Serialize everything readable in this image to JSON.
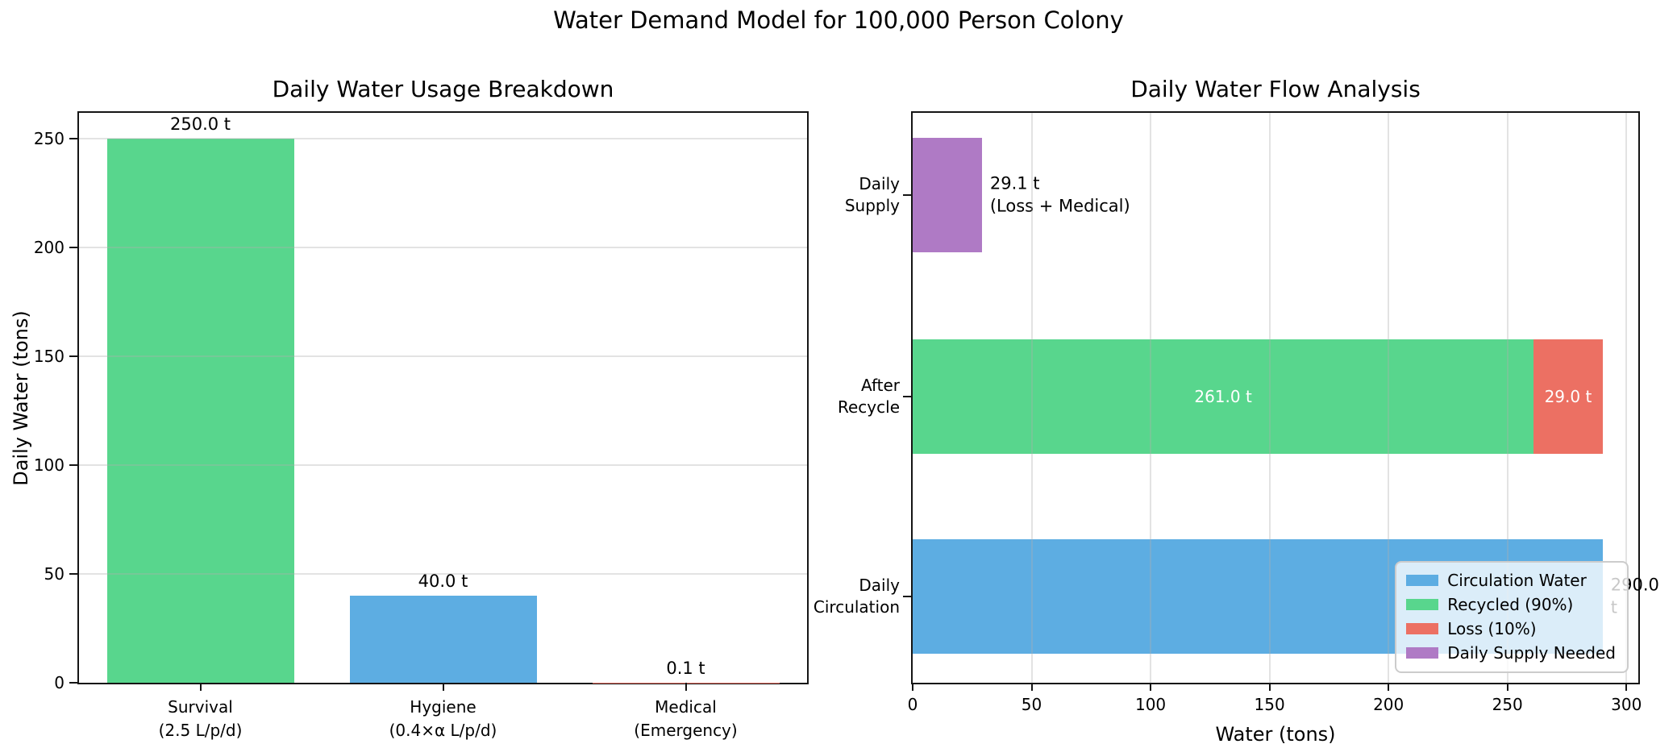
{
  "suptitle": "Water Demand Model for 100,000 Person Colony",
  "chart_data": [
    {
      "type": "bar",
      "title": "Daily Water Usage Breakdown",
      "xlabel": "",
      "ylabel": "Daily Water (tons)",
      "categories": [
        "Survival\n(2.5 L/p/d)",
        "Hygiene\n(0.4×α L/p/d)",
        "Medical\n(Emergency)"
      ],
      "values": [
        250.0,
        40.0,
        0.1
      ],
      "bar_value_labels": [
        "250.0 t",
        "40.0 t",
        "0.1 t"
      ],
      "bar_colors": [
        "#58D68D",
        "#5DADE2",
        "#EC7063"
      ],
      "ylim": [
        0,
        262
      ],
      "yticks": [
        0,
        50,
        100,
        150,
        200,
        250
      ],
      "grid": "horizontal"
    },
    {
      "type": "barh-stacked",
      "title": "Daily Water Flow Analysis",
      "xlabel": "Water (tons)",
      "ylabel": "",
      "categories": [
        "Daily\nSupply",
        "After\nRecycle",
        "Daily\nCirculation"
      ],
      "xlim": [
        0,
        305
      ],
      "xticks": [
        0,
        50,
        100,
        150,
        200,
        250,
        300
      ],
      "grid": "vertical",
      "segments": [
        {
          "row_index": 0,
          "series": "Daily Supply Needed",
          "start": 0,
          "value": 29.1,
          "color": "#AF7AC5",
          "label": "29.1 t\n(Loss + Medical)",
          "label_pos": "right",
          "label_color": "#000000"
        },
        {
          "row_index": 1,
          "series": "Recycled (90%)",
          "start": 0,
          "value": 261.0,
          "color": "#58D68D",
          "label": "261.0 t",
          "label_pos": "center",
          "label_color": "#ffffff"
        },
        {
          "row_index": 1,
          "series": "Loss (10%)",
          "start": 261.0,
          "value": 29.0,
          "color": "#EC7063",
          "label": "29.0 t",
          "label_pos": "center",
          "label_color": "#ffffff"
        },
        {
          "row_index": 2,
          "series": "Circulation Water",
          "start": 0,
          "value": 290.0,
          "color": "#5DADE2",
          "label": "290.0 t",
          "label_pos": "right",
          "label_color": "#000000"
        }
      ],
      "legend": {
        "position": "lower right",
        "entries": [
          {
            "label": "Circulation Water",
            "color": "#5DADE2"
          },
          {
            "label": "Recycled (90%)",
            "color": "#58D68D"
          },
          {
            "label": "Loss (10%)",
            "color": "#EC7063"
          },
          {
            "label": "Daily Supply Needed",
            "color": "#AF7AC5"
          }
        ]
      }
    }
  ]
}
